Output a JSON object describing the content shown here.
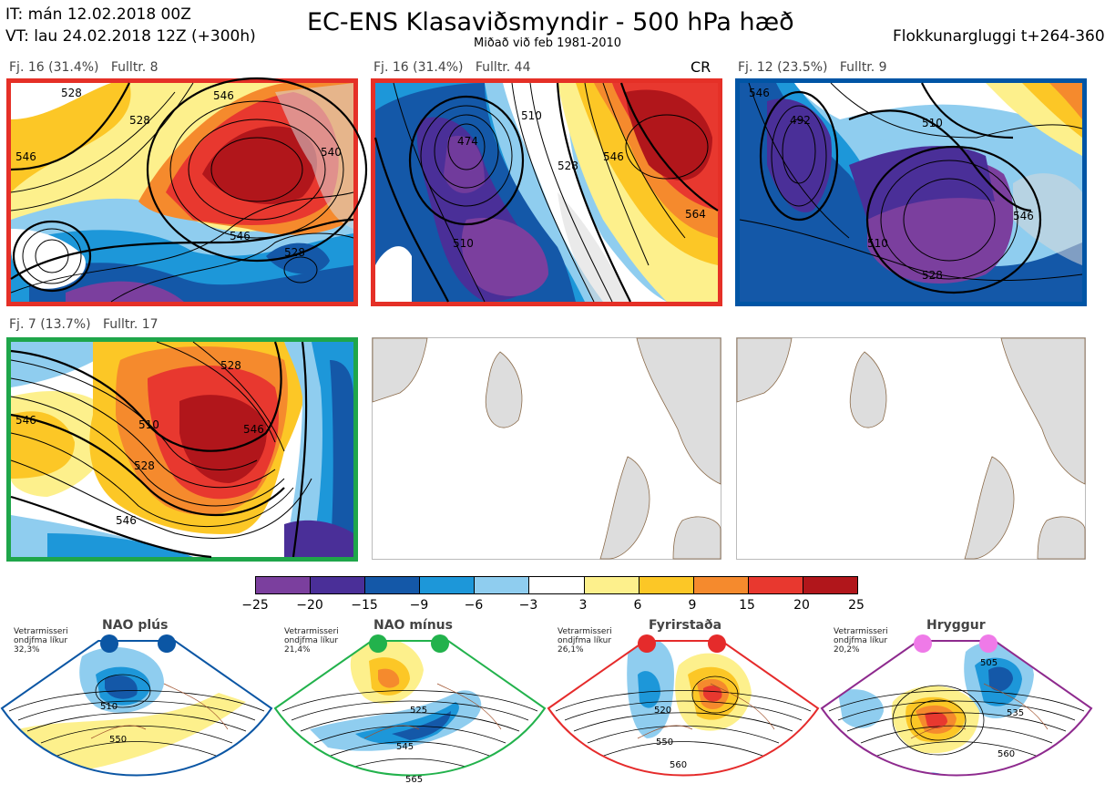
{
  "header": {
    "it_line": "IT: mán 12.02.2018 00Z",
    "vt_line": "VT: lau 24.02.2018 12Z  (+300h)",
    "title": "EC-ENS Klasaviðsmyndir - 500 hPa hæð",
    "subtitle": "Miðað við feb 1981-2010",
    "window": "Flokkunargluggi t+264-360"
  },
  "panels": [
    {
      "label_a": "Fj. 16 (31.4%)",
      "label_b": "Fulltr. 8",
      "tag": "",
      "border": "#e53027",
      "contours": [
        "528",
        "546",
        "528",
        "546",
        "540",
        "546",
        "528"
      ]
    },
    {
      "label_a": "Fj. 16 (31.4%)",
      "label_b": "Fulltr. 44",
      "tag": "CR",
      "border": "#e53027",
      "contours": [
        "474",
        "510",
        "510",
        "528",
        "546",
        "564"
      ]
    },
    {
      "label_a": "Fj. 12 (23.5%)",
      "label_b": "Fulltr. 9",
      "tag": "",
      "border": "#0055a5",
      "contours": [
        "510",
        "492",
        "510",
        "528",
        "546",
        "546"
      ]
    },
    {
      "label_a": "Fj. 7 (13.7%)",
      "label_b": "Fulltr. 17",
      "tag": "",
      "border": "#1fa64a",
      "contours": [
        "510",
        "528",
        "546",
        "546",
        "528",
        "546"
      ]
    }
  ],
  "colorbar": {
    "ticks": [
      "−25",
      "−20",
      "−15",
      "−9",
      "−6",
      "−3",
      "3",
      "6",
      "9",
      "15",
      "20",
      "25"
    ],
    "colors": [
      "#7b3f9e",
      "#4a2f98",
      "#1458a8",
      "#1d97d9",
      "#8fcdef",
      "#ffffff",
      "#fdf08c",
      "#fcc726",
      "#f58a2d",
      "#e8382f",
      "#b1161b"
    ]
  },
  "regimes": [
    {
      "title": "NAO plús",
      "note": "Vetrarmisseri ondjfma líkur 32,3%",
      "dot_color": "#0b56a4",
      "frame_color": "#0b56a4",
      "contours": [
        "510",
        "550"
      ]
    },
    {
      "title": "NAO mínus",
      "note": "Vetrarmisseri ondjfma líkur 21,4%",
      "dot_color": "#22b24c",
      "frame_color": "#22b24c",
      "contours": [
        "525",
        "545",
        "565"
      ]
    },
    {
      "title": "Fyrirstaða",
      "note": "Vetrarmisseri ondjfma líkur 26,1%",
      "dot_color": "#e52b2b",
      "frame_color": "#e52b2b",
      "contours": [
        "520",
        "550",
        "560"
      ]
    },
    {
      "title": "Hryggur",
      "note": "Vetrarmisseri ondjfma líkur 20,2%",
      "dot_color": "#ef7ae8",
      "frame_color": "#8e2a8e",
      "contours": [
        "505",
        "535",
        "560"
      ]
    }
  ]
}
